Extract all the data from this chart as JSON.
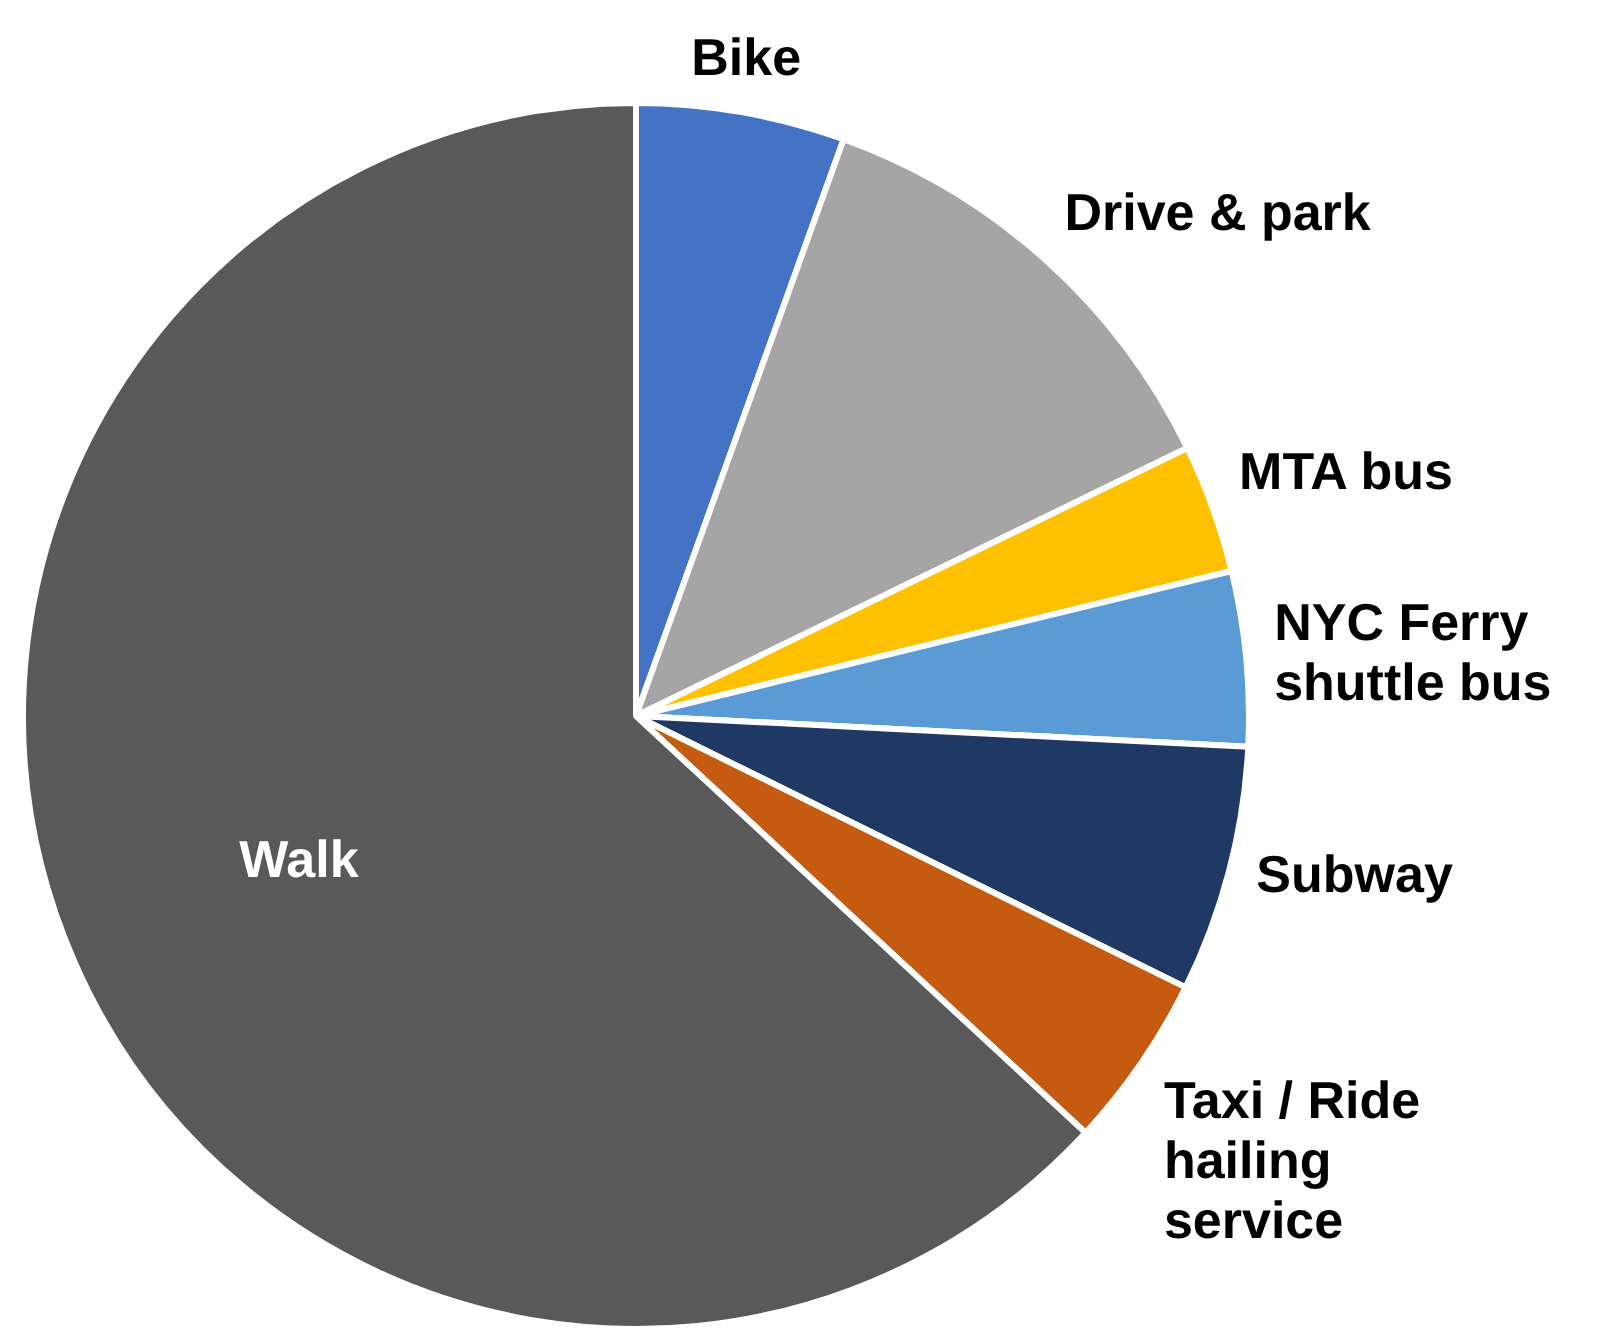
{
  "chart_data": {
    "type": "pie",
    "categories": [
      "Bike",
      "Drive & park",
      "MTA bus",
      "NYC Ferry shuttle bus",
      "Subway",
      "Taxi / Ride hailing service",
      "Walk"
    ],
    "values": [
      5.5,
      12.3,
      3.4,
      4.6,
      6.5,
      4.6,
      63.1
    ],
    "colors": [
      "#4472c4",
      "#a5a5a5",
      "#ffc000",
      "#5b9bd5",
      "#203864",
      "#c55a11",
      "#595959"
    ],
    "legend": false
  }
}
